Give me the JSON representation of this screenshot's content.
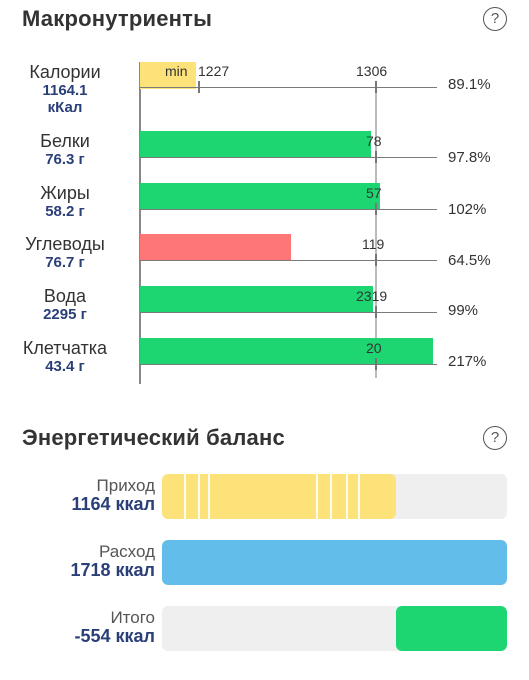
{
  "macros": {
    "title": "Макронутриенты",
    "help_label": "?",
    "rows": [
      {
        "name": "Калории",
        "value": "1164.1",
        "unit": "кКал",
        "min_label": "min",
        "min_value": "1227",
        "target": "1306",
        "percent": "89.1%",
        "color": "#fde27a"
      },
      {
        "name": "Белки",
        "value": "76.3 г",
        "target": "78",
        "percent": "97.8%",
        "color": "#1dd672"
      },
      {
        "name": "Жиры",
        "value": "58.2 г",
        "target": "57",
        "percent": "102%",
        "color": "#1dd672"
      },
      {
        "name": "Углеводы",
        "value": "76.7 г",
        "target": "119",
        "percent": "64.5%",
        "color": "#ff7676"
      },
      {
        "name": "Вода",
        "value": "2295 г",
        "target": "2319",
        "percent": "99%",
        "color": "#1dd672"
      },
      {
        "name": "Клетчатка",
        "value": "43.4 г",
        "target": "20",
        "percent": "217%",
        "color": "#1dd672"
      }
    ]
  },
  "energy": {
    "title": "Энергетический баланс",
    "help_label": "?",
    "rows": [
      {
        "label": "Приход",
        "value": "1164 ккал",
        "fill_fraction": 0.678,
        "color": "#fde27a"
      },
      {
        "label": "Расход",
        "value": "1718 ккал",
        "fill_fraction": 1.0,
        "color": "#62bdea"
      },
      {
        "label": "Итого",
        "value": "-554 ккал",
        "fill_fraction": 0.322,
        "color": "#1dd672"
      }
    ]
  }
}
